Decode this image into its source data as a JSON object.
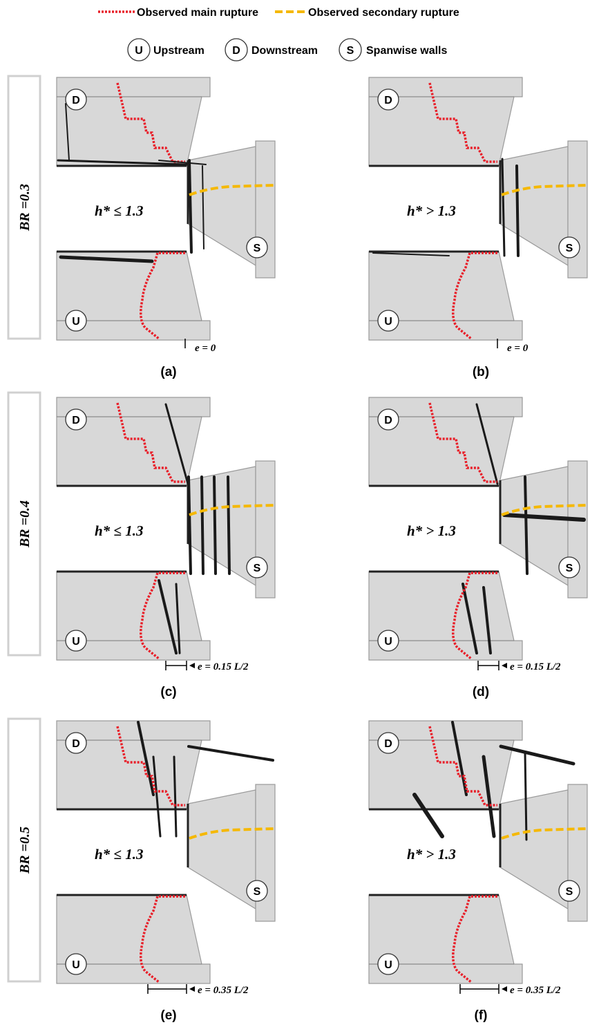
{
  "legend": {
    "main_rupture_label": "Observed main rupture",
    "secondary_rupture_label": "Observed secondary  rupture",
    "main_color": "#e8202a",
    "secondary_color": "#f5b800",
    "circle_items": [
      {
        "letter": "U",
        "label": "Upstream"
      },
      {
        "letter": "D",
        "label": "Downstream"
      },
      {
        "letter": "S",
        "label": "Spanwise walls"
      }
    ]
  },
  "rows": [
    {
      "br_label": "BR =0.3"
    },
    {
      "br_label": "BR =0.4"
    },
    {
      "br_label": "BR =0.5"
    }
  ],
  "panels": [
    {
      "id": "a",
      "caption": "(a)",
      "h_label": "h* ≤ 1.3",
      "e_label": "e = 0"
    },
    {
      "id": "b",
      "caption": "(b)",
      "h_label": "h* > 1.3",
      "e_label": "e = 0"
    },
    {
      "id": "c",
      "caption": "(c)",
      "h_label": "h* ≤ 1.3",
      "e_label": "e = 0.15 L/2"
    },
    {
      "id": "d",
      "caption": "(d)",
      "h_label": "h* > 1.3",
      "e_label": "e = 0.15 L/2"
    },
    {
      "id": "e",
      "caption": "(e)",
      "h_label": "h* ≤ 1.3",
      "e_label": "e = 0.35 L/2"
    },
    {
      "id": "f",
      "caption": "(f)",
      "h_label": "h* > 1.3",
      "e_label": "e = 0.35 L/2"
    }
  ],
  "wall_letters": {
    "downstream": "D",
    "upstream": "U",
    "spanwise": "S"
  }
}
